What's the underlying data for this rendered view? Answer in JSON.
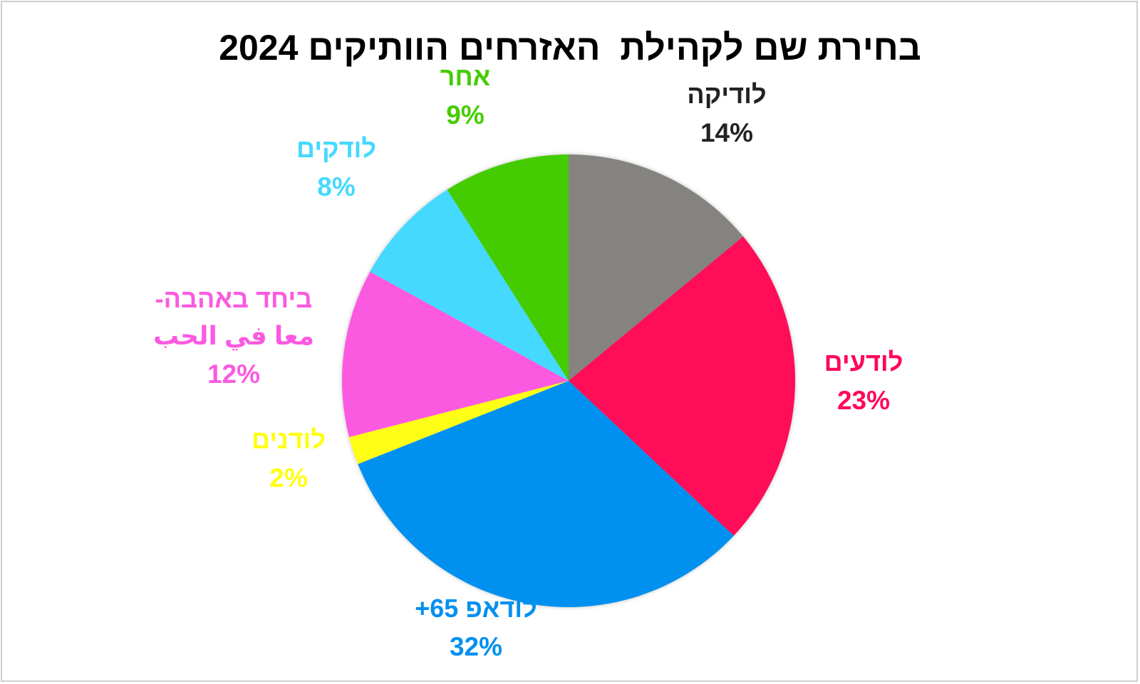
{
  "chart_data": {
    "type": "pie",
    "title": "בחירת שם לקהילת  האזרחים הוותיקים 2024",
    "slices": [
      {
        "label": [
          "לודיקה"
        ],
        "value": 14,
        "value_label": "14%",
        "color": "#85837f",
        "label_color": "#222222"
      },
      {
        "label": [
          "לודעים"
        ],
        "value": 23,
        "value_label": "23%",
        "color": "#ff0858",
        "label_color": "#ff0858"
      },
      {
        "label": [
          "לודאפ 65+"
        ],
        "value": 32,
        "value_label": "32%",
        "color": "#0090f0",
        "label_color": "#0090f0"
      },
      {
        "label": [
          "לודנים"
        ],
        "value": 2,
        "value_label": "2%",
        "color": "#ffff12",
        "label_color": "#ffff12"
      },
      {
        "label": [
          "ביחד באהבה-",
          "معا في الحب"
        ],
        "value": 12,
        "value_label": "12%",
        "color": "#fb5ae0",
        "label_color": "#fb5ae0"
      },
      {
        "label": [
          "לודקים"
        ],
        "value": 8,
        "value_label": "8%",
        "color": "#45d9ff",
        "label_color": "#45d9ff"
      },
      {
        "label": [
          "אחר"
        ],
        "value": 9,
        "value_label": "9%",
        "color": "#44cc00",
        "label_color": "#44cc00"
      }
    ],
    "legend": "none",
    "start_angle": "12 o'clock, clockwise"
  }
}
